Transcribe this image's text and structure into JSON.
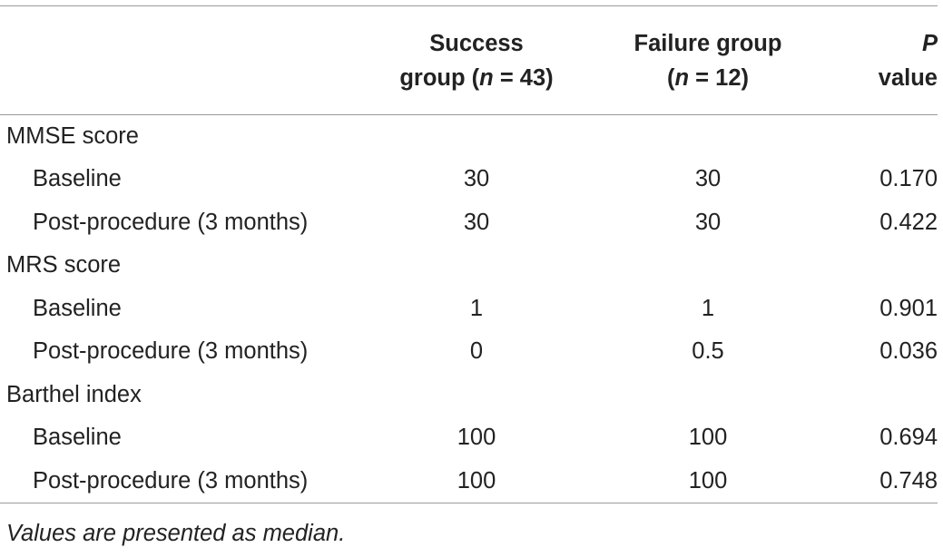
{
  "table": {
    "header": {
      "col0": "",
      "col1_line1": "Success",
      "col1_line2_pre": "group (",
      "col1_line2_n": "n",
      "col1_line2_post": " = 43)",
      "col2_line1": "Failure group",
      "col2_line2_pre": "(",
      "col2_line2_n": "n",
      "col2_line2_post": " = 12)",
      "col3_line1": "P",
      "col3_line2": "value"
    },
    "sections": [
      {
        "label": "MMSE score",
        "rows": [
          {
            "label": "Baseline",
            "success": "30",
            "failure": "30",
            "p": "0.170"
          },
          {
            "label": "Post-procedure (3 months)",
            "success": "30",
            "failure": "30",
            "p": "0.422"
          }
        ]
      },
      {
        "label": "MRS score",
        "rows": [
          {
            "label": "Baseline",
            "success": "1",
            "failure": "1",
            "p": "0.901"
          },
          {
            "label": "Post-procedure (3 months)",
            "success": "0",
            "failure": "0.5",
            "p": "0.036"
          }
        ]
      },
      {
        "label": "Barthel index",
        "rows": [
          {
            "label": "Baseline",
            "success": "100",
            "failure": "100",
            "p": "0.694"
          },
          {
            "label": "Post-procedure (3 months)",
            "success": "100",
            "failure": "100",
            "p": "0.748"
          }
        ]
      }
    ],
    "footnote": "Values are presented as median."
  }
}
